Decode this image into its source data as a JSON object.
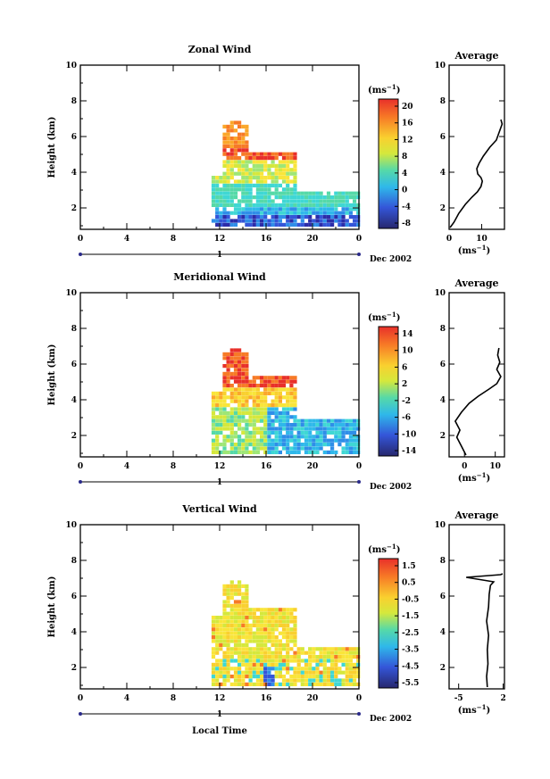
{
  "chart_data": {
    "type": "heatmap",
    "x_ticks": [
      "0",
      "4",
      "8",
      "12",
      "16",
      "20",
      "0"
    ],
    "day_label": "1",
    "date_label": "Dec 2002",
    "xlabel": "Local Time",
    "ylabel": "Height (km)",
    "y_ticks": [
      "2",
      "4",
      "6",
      "8",
      "10"
    ],
    "ylim": [
      0.8,
      10
    ],
    "xlim": [
      0,
      24
    ],
    "unit_label": "(ms",
    "unit_exp": "−1",
    "avg_title": "Average",
    "panels": [
      {
        "title": "Zonal Wind",
        "colorbar_ticks": [
          "20",
          "16",
          "12",
          "8",
          "4",
          "0",
          "-4",
          "-8"
        ],
        "avg_x_ticks": [
          "0",
          "10"
        ],
        "avg_y_ticks": [
          "2",
          "4",
          "6",
          "8",
          "10"
        ],
        "avg_xlim": [
          0,
          17
        ],
        "avg_profile": [
          [
            0.3,
            0.9
          ],
          [
            1.5,
            1.2
          ],
          [
            3,
            1.7
          ],
          [
            5,
            2.2
          ],
          [
            7,
            2.6
          ],
          [
            8.7,
            2.9
          ],
          [
            9.8,
            3.2
          ],
          [
            10.2,
            3.5
          ],
          [
            9.8,
            3.7
          ],
          [
            8.8,
            3.9
          ],
          [
            8.5,
            4.2
          ],
          [
            9.2,
            4.5
          ],
          [
            10.5,
            4.9
          ],
          [
            12.5,
            5.4
          ],
          [
            14.5,
            5.8
          ],
          [
            15.5,
            6.3
          ],
          [
            16.3,
            6.7
          ],
          [
            15.9,
            6.95
          ]
        ]
      },
      {
        "title": "Meridional Wind",
        "colorbar_ticks": [
          "14",
          "10",
          "6",
          "2",
          "-2",
          "-6",
          "-10",
          "-14"
        ],
        "avg_x_ticks": [
          "0",
          "10"
        ],
        "avg_y_ticks": [
          "2",
          "4",
          "6",
          "8",
          "10"
        ],
        "avg_xlim": [
          -5,
          13
        ],
        "avg_profile": [
          [
            0.5,
            0.9
          ],
          [
            -1,
            1.4
          ],
          [
            -2.5,
            1.9
          ],
          [
            -1.5,
            2.3
          ],
          [
            -3,
            2.8
          ],
          [
            -1,
            3.3
          ],
          [
            1.5,
            3.8
          ],
          [
            4.5,
            4.2
          ],
          [
            8,
            4.6
          ],
          [
            10.5,
            4.9
          ],
          [
            11.8,
            5.3
          ],
          [
            10.5,
            5.7
          ],
          [
            11.5,
            6.1
          ],
          [
            10.8,
            6.5
          ],
          [
            11.2,
            6.9
          ]
        ]
      },
      {
        "title": "Vertical Wind",
        "colorbar_ticks": [
          "1.5",
          "0.5",
          "-0.5",
          "-1.5",
          "-2.5",
          "-3.5",
          "-4.5",
          "-5.5"
        ],
        "avg_x_ticks": [
          "-5",
          "2"
        ],
        "avg_y_ticks": [
          "2",
          "4",
          "6",
          "8",
          "10"
        ],
        "avg_xlim": [
          -6.5,
          2.2
        ],
        "avg_profile": [
          [
            -0.5,
            0.9
          ],
          [
            -0.6,
            1.5
          ],
          [
            -0.4,
            2.2
          ],
          [
            -0.5,
            3
          ],
          [
            -0.3,
            3.8
          ],
          [
            -0.6,
            4.6
          ],
          [
            -0.3,
            5.4
          ],
          [
            -0.2,
            6.1
          ],
          [
            0,
            6.6
          ],
          [
            0.5,
            6.8
          ],
          [
            -3.8,
            7.05
          ],
          [
            1.6,
            7.2
          ],
          [
            1.9,
            7.25
          ]
        ]
      }
    ]
  }
}
